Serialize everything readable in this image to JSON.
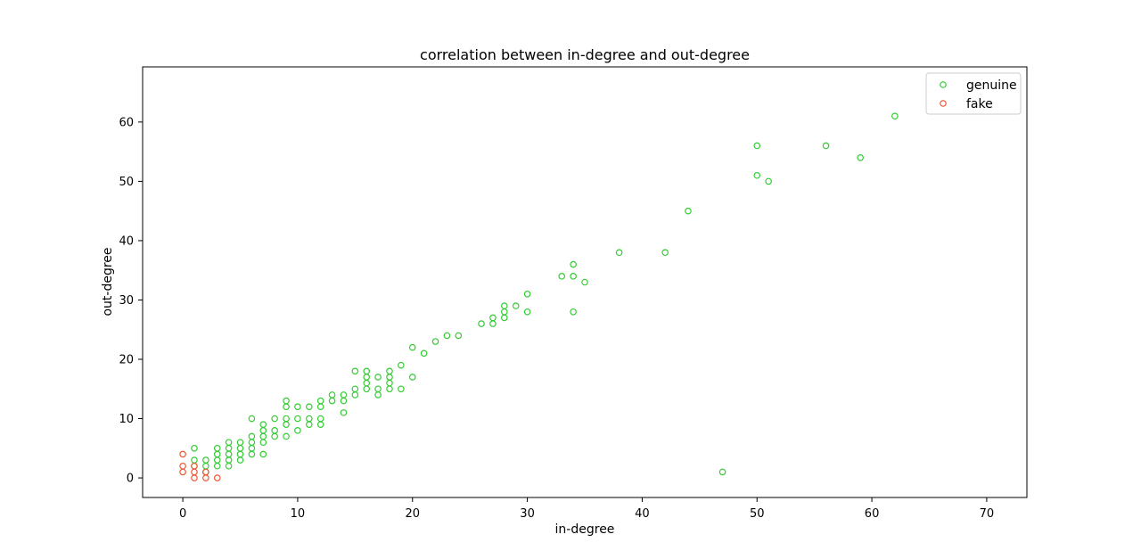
{
  "chart_data": {
    "type": "scatter",
    "title": "correlation between in-degree and out-degree",
    "xlabel": "in-degree",
    "ylabel": "out-degree",
    "xlim": [
      -3.5,
      73.5
    ],
    "ylim": [
      -3.3,
      69.3
    ],
    "xticks": [
      0,
      10,
      20,
      30,
      40,
      50,
      60,
      70
    ],
    "yticks": [
      0,
      10,
      20,
      30,
      40,
      50,
      60
    ],
    "grid": false,
    "legend_position": "top-right",
    "series": [
      {
        "name": "genuine",
        "color": "#33cc33",
        "marker": "hollow-circle",
        "points": [
          [
            1,
            5
          ],
          [
            1,
            3
          ],
          [
            1,
            2
          ],
          [
            2,
            3
          ],
          [
            2,
            2
          ],
          [
            2,
            1
          ],
          [
            3,
            5
          ],
          [
            3,
            4
          ],
          [
            3,
            3
          ],
          [
            3,
            2
          ],
          [
            4,
            6
          ],
          [
            4,
            5
          ],
          [
            4,
            4
          ],
          [
            4,
            3
          ],
          [
            4,
            2
          ],
          [
            5,
            6
          ],
          [
            5,
            5
          ],
          [
            5,
            4
          ],
          [
            5,
            3
          ],
          [
            6,
            10
          ],
          [
            6,
            7
          ],
          [
            6,
            6
          ],
          [
            6,
            5
          ],
          [
            6,
            4
          ],
          [
            7,
            9
          ],
          [
            7,
            8
          ],
          [
            7,
            7
          ],
          [
            7,
            6
          ],
          [
            7,
            4
          ],
          [
            8,
            10
          ],
          [
            8,
            8
          ],
          [
            8,
            7
          ],
          [
            9,
            13
          ],
          [
            9,
            12
          ],
          [
            9,
            10
          ],
          [
            9,
            9
          ],
          [
            9,
            7
          ],
          [
            10,
            12
          ],
          [
            10,
            10
          ],
          [
            10,
            8
          ],
          [
            11,
            12
          ],
          [
            11,
            10
          ],
          [
            11,
            9
          ],
          [
            12,
            13
          ],
          [
            12,
            12
          ],
          [
            12,
            10
          ],
          [
            12,
            9
          ],
          [
            13,
            14
          ],
          [
            13,
            13
          ],
          [
            14,
            14
          ],
          [
            14,
            13
          ],
          [
            14,
            11
          ],
          [
            15,
            18
          ],
          [
            15,
            15
          ],
          [
            15,
            14
          ],
          [
            16,
            18
          ],
          [
            16,
            17
          ],
          [
            16,
            16
          ],
          [
            16,
            15
          ],
          [
            17,
            17
          ],
          [
            17,
            15
          ],
          [
            17,
            14
          ],
          [
            18,
            18
          ],
          [
            18,
            17
          ],
          [
            18,
            16
          ],
          [
            18,
            15
          ],
          [
            19,
            19
          ],
          [
            19,
            15
          ],
          [
            20,
            22
          ],
          [
            20,
            17
          ],
          [
            21,
            21
          ],
          [
            22,
            23
          ],
          [
            23,
            24
          ],
          [
            24,
            24
          ],
          [
            26,
            26
          ],
          [
            27,
            27
          ],
          [
            27,
            26
          ],
          [
            28,
            29
          ],
          [
            28,
            28
          ],
          [
            28,
            27
          ],
          [
            29,
            29
          ],
          [
            30,
            31
          ],
          [
            30,
            28
          ],
          [
            33,
            34
          ],
          [
            34,
            36
          ],
          [
            34,
            34
          ],
          [
            34,
            28
          ],
          [
            35,
            33
          ],
          [
            38,
            38
          ],
          [
            42,
            38
          ],
          [
            44,
            45
          ],
          [
            47,
            1
          ],
          [
            50,
            56
          ],
          [
            50,
            51
          ],
          [
            51,
            50
          ],
          [
            56,
            56
          ],
          [
            59,
            54
          ],
          [
            62,
            61
          ]
        ]
      },
      {
        "name": "fake",
        "color": "#ee5533",
        "marker": "hollow-circle",
        "points": [
          [
            0,
            4
          ],
          [
            0,
            2
          ],
          [
            0,
            1
          ],
          [
            1,
            2
          ],
          [
            1,
            1
          ],
          [
            1,
            0
          ],
          [
            2,
            1
          ],
          [
            2,
            0
          ],
          [
            3,
            0
          ]
        ]
      }
    ]
  }
}
